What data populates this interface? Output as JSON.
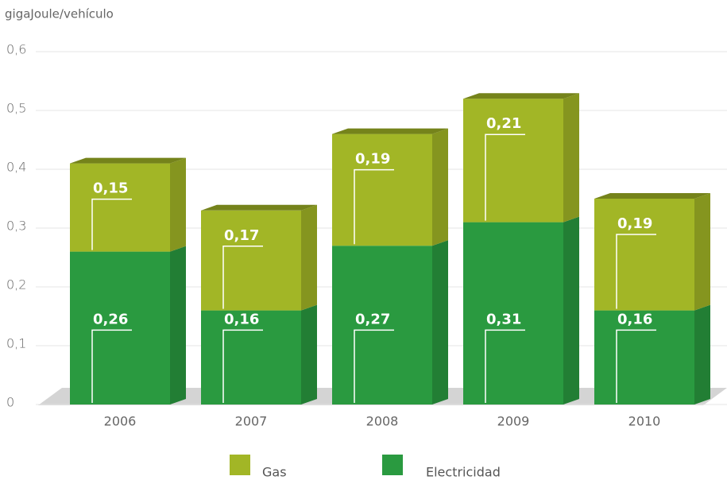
{
  "chart_data": {
    "type": "bar",
    "stacked": true,
    "ylabel": "gigaJoule/vehículo",
    "categories": [
      "2006",
      "2007",
      "2008",
      "2009",
      "2010"
    ],
    "series": [
      {
        "name": "Electricidad",
        "color": "#2a9a40",
        "values": [
          0.26,
          0.16,
          0.27,
          0.31,
          0.16
        ],
        "value_labels": [
          "0,26",
          "0,16",
          "0,27",
          "0,31",
          "0,16"
        ]
      },
      {
        "name": "Gas",
        "color": "#a2b626",
        "values": [
          0.15,
          0.17,
          0.19,
          0.21,
          0.19
        ],
        "value_labels": [
          "0,15",
          "0,17",
          "0,19",
          "0,21",
          "0,19"
        ]
      }
    ],
    "ylim": [
      0,
      0.6
    ],
    "yticks": [
      0,
      {
        "value": 0.1,
        "label": "0,1"
      },
      {
        "value": 0.2,
        "label": "0,2"
      },
      {
        "value": 0.3,
        "label": "0,3"
      },
      {
        "value": 0.4,
        "label": "0,4"
      },
      {
        "value": 0.5,
        "label": "0,5"
      },
      {
        "value": 0.6,
        "label": "0,6"
      }
    ],
    "grid": true,
    "legend": "bottom"
  }
}
